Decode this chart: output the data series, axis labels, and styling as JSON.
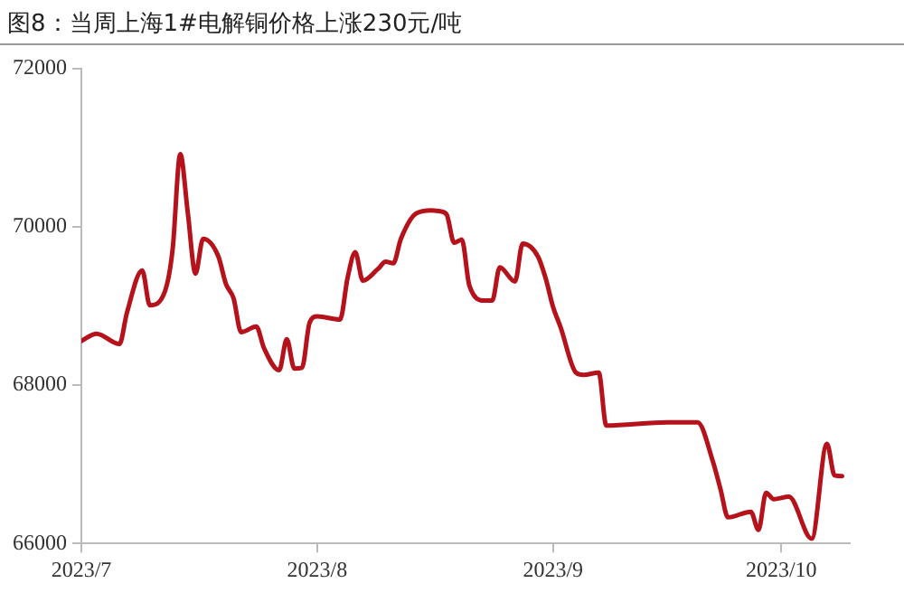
{
  "chart_data": {
    "type": "line",
    "title": "图8：当周上海1#电解铜价格上涨230元/吨",
    "x": [
      "2023-07-01",
      "2023-07-03",
      "2023-07-06",
      "2023-07-07",
      "2023-07-09",
      "2023-07-10",
      "2023-07-12",
      "2023-07-13",
      "2023-07-14",
      "2023-07-15",
      "2023-07-16",
      "2023-07-17",
      "2023-07-19",
      "2023-07-20",
      "2023-07-21",
      "2023-07-22",
      "2023-07-24",
      "2023-07-25",
      "2023-07-27",
      "2023-07-28",
      "2023-07-29",
      "2023-07-30",
      "2023-07-31",
      "2023-08-01",
      "2023-08-04",
      "2023-08-05",
      "2023-08-06",
      "2023-08-07",
      "2023-08-09",
      "2023-08-10",
      "2023-08-11",
      "2023-08-12",
      "2023-08-14",
      "2023-08-16",
      "2023-08-17",
      "2023-08-18",
      "2023-08-19",
      "2023-08-20",
      "2023-08-21",
      "2023-08-23",
      "2023-08-24",
      "2023-08-25",
      "2023-08-27",
      "2023-08-28",
      "2023-08-30",
      "2023-08-31",
      "2023-09-01",
      "2023-09-02",
      "2023-09-04",
      "2023-09-05",
      "2023-09-07",
      "2023-09-08",
      "2023-09-16",
      "2023-09-20",
      "2023-09-22",
      "2023-09-23",
      "2023-09-24",
      "2023-09-27",
      "2023-09-28",
      "2023-09-29",
      "2023-09-30",
      "2023-10-02",
      "2023-10-05",
      "2023-10-07",
      "2023-10-08",
      "2023-10-09"
    ],
    "series": [
      {
        "color": "#b5121b",
        "values": [
          68560,
          68650,
          68520,
          68920,
          69450,
          69010,
          69190,
          69720,
          70920,
          70170,
          69410,
          69850,
          69630,
          69280,
          69100,
          68670,
          68740,
          68470,
          68190,
          68580,
          68210,
          68220,
          68790,
          68870,
          68830,
          69360,
          69680,
          69320,
          69470,
          69560,
          69540,
          69850,
          70170,
          70210,
          70200,
          70160,
          69800,
          69840,
          69260,
          69070,
          69070,
          69490,
          69310,
          69790,
          69630,
          69360,
          68990,
          68730,
          68160,
          68130,
          68160,
          67490,
          67530,
          67530,
          67040,
          66690,
          66330,
          66400,
          66170,
          66640,
          66560,
          66590,
          66060,
          67260,
          66860,
          66850
        ]
      }
    ],
    "xlim": [
      "2023-07-01",
      "2023-10-10"
    ],
    "xticks": [
      {
        "value": "2023-07-01",
        "label": "2023/7"
      },
      {
        "value": "2023-08-01",
        "label": "2023/8"
      },
      {
        "value": "2023-09-01",
        "label": "2023/9"
      },
      {
        "value": "2023-10-01",
        "label": "2023/10"
      }
    ],
    "ylim": [
      66000,
      72000
    ],
    "yticks": [
      66000,
      68000,
      70000,
      72000
    ],
    "grid": false,
    "legend": false,
    "marker": "none",
    "line_style": "solid"
  }
}
